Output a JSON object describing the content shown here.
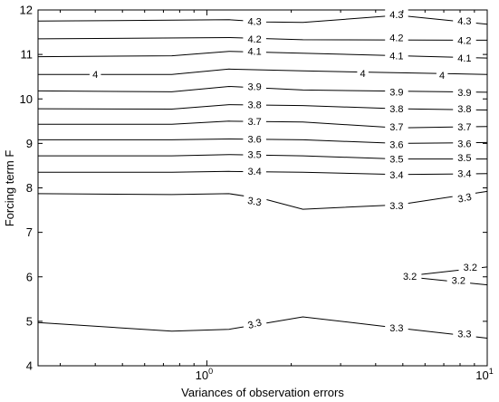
{
  "chart_data": {
    "type": "contour",
    "title": "",
    "xlabel": "Variances of observation errors",
    "ylabel": "Forcing term F",
    "x_scale": "log",
    "xlim": [
      0.25,
      10
    ],
    "ylim": [
      4,
      12
    ],
    "xticks": [
      {
        "value": 1,
        "base": "10",
        "exp": "0"
      },
      {
        "value": 10,
        "base": "10",
        "exp": "1"
      }
    ],
    "yticks": [
      4,
      5,
      6,
      7,
      8,
      9,
      10,
      11,
      12
    ],
    "grid": false,
    "legend": "none",
    "contours": [
      {
        "level": "4.3",
        "points": [
          [
            0.25,
            11.75
          ],
          [
            1.2,
            11.78
          ],
          [
            1.6,
            11.73
          ],
          [
            2.2,
            11.72
          ],
          [
            4.8,
            11.88
          ],
          [
            10,
            11.68
          ]
        ],
        "labels": [
          {
            "x": 1.48,
            "y": 11.75,
            "rot": 0
          },
          {
            "x": 4.75,
            "y": 11.9,
            "rot": 0
          },
          {
            "x": 8.3,
            "y": 11.76,
            "rot": 0
          }
        ]
      },
      {
        "level": "4.2",
        "points": [
          [
            0.25,
            11.35
          ],
          [
            1.2,
            11.38
          ],
          [
            2.2,
            11.33
          ],
          [
            10,
            11.32
          ]
        ],
        "labels": [
          {
            "x": 1.48,
            "y": 11.35,
            "rot": 0
          },
          {
            "x": 4.75,
            "y": 11.38,
            "rot": 0
          },
          {
            "x": 8.3,
            "y": 11.32,
            "rot": 0
          }
        ]
      },
      {
        "level": "4.1",
        "points": [
          [
            0.25,
            10.95
          ],
          [
            0.75,
            10.97
          ],
          [
            1.2,
            11.07
          ],
          [
            10,
            10.92
          ]
        ],
        "labels": [
          {
            "x": 1.48,
            "y": 11.07,
            "rot": 0
          },
          {
            "x": 4.75,
            "y": 10.97,
            "rot": 0
          },
          {
            "x": 8.3,
            "y": 10.92,
            "rot": 0
          }
        ]
      },
      {
        "level": "4",
        "points": [
          [
            0.25,
            10.55
          ],
          [
            0.75,
            10.55
          ],
          [
            1.2,
            10.67
          ],
          [
            2.2,
            10.63
          ],
          [
            10,
            10.55
          ]
        ],
        "labels": [
          {
            "x": 0.4,
            "y": 10.55,
            "rot": 0
          },
          {
            "x": 3.6,
            "y": 10.58,
            "rot": 0
          },
          {
            "x": 6.9,
            "y": 10.53,
            "rot": 0
          }
        ]
      },
      {
        "level": "3.9",
        "points": [
          [
            0.25,
            10.18
          ],
          [
            0.75,
            10.16
          ],
          [
            1.2,
            10.28
          ],
          [
            2.2,
            10.2
          ],
          [
            10,
            10.15
          ]
        ],
        "labels": [
          {
            "x": 1.48,
            "y": 10.28,
            "rot": 0
          },
          {
            "x": 4.75,
            "y": 10.16,
            "rot": 0
          },
          {
            "x": 8.3,
            "y": 10.15,
            "rot": 0
          }
        ]
      },
      {
        "level": "3.8",
        "points": [
          [
            0.25,
            9.78
          ],
          [
            0.75,
            9.77
          ],
          [
            1.2,
            9.87
          ],
          [
            2.2,
            9.85
          ],
          [
            4.8,
            9.78
          ],
          [
            10,
            9.75
          ]
        ],
        "labels": [
          {
            "x": 1.48,
            "y": 9.87,
            "rot": 0
          },
          {
            "x": 4.75,
            "y": 9.78,
            "rot": 0
          },
          {
            "x": 8.3,
            "y": 9.78,
            "rot": 0
          }
        ]
      },
      {
        "level": "3.7",
        "points": [
          [
            0.25,
            9.43
          ],
          [
            0.75,
            9.43
          ],
          [
            1.2,
            9.5
          ],
          [
            2.2,
            9.48
          ],
          [
            4.8,
            9.35
          ],
          [
            10,
            9.38
          ]
        ],
        "labels": [
          {
            "x": 1.48,
            "y": 9.5,
            "rot": 0
          },
          {
            "x": 4.75,
            "y": 9.37,
            "rot": 0
          },
          {
            "x": 8.3,
            "y": 9.37,
            "rot": 0
          }
        ]
      },
      {
        "level": "3.6",
        "points": [
          [
            0.25,
            9.08
          ],
          [
            0.75,
            9.08
          ],
          [
            1.2,
            9.1
          ],
          [
            2.2,
            9.08
          ],
          [
            4.8,
            9.0
          ],
          [
            10,
            9.02
          ]
        ],
        "labels": [
          {
            "x": 1.48,
            "y": 9.1,
            "rot": 0
          },
          {
            "x": 4.75,
            "y": 8.98,
            "rot": 0
          },
          {
            "x": 8.3,
            "y": 9.0,
            "rot": 0
          }
        ]
      },
      {
        "level": "3.5",
        "points": [
          [
            0.25,
            8.72
          ],
          [
            0.75,
            8.72
          ],
          [
            1.2,
            8.75
          ],
          [
            2.2,
            8.72
          ],
          [
            4.8,
            8.65
          ],
          [
            10,
            8.65
          ]
        ],
        "labels": [
          {
            "x": 1.48,
            "y": 8.75,
            "rot": 0
          },
          {
            "x": 4.75,
            "y": 8.65,
            "rot": 0
          },
          {
            "x": 8.3,
            "y": 8.68,
            "rot": 0
          }
        ]
      },
      {
        "level": "3.4",
        "points": [
          [
            0.25,
            8.35
          ],
          [
            0.75,
            8.35
          ],
          [
            1.2,
            8.37
          ],
          [
            2.2,
            8.35
          ],
          [
            4.8,
            8.3
          ],
          [
            10,
            8.32
          ]
        ],
        "labels": [
          {
            "x": 1.48,
            "y": 8.38,
            "rot": 0
          },
          {
            "x": 4.75,
            "y": 8.3,
            "rot": 0
          },
          {
            "x": 8.3,
            "y": 8.33,
            "rot": 0
          }
        ]
      },
      {
        "level": "3.3",
        "points": [
          [
            0.25,
            7.87
          ],
          [
            0.75,
            7.85
          ],
          [
            1.2,
            7.87
          ],
          [
            1.6,
            7.75
          ],
          [
            2.2,
            7.52
          ],
          [
            4.8,
            7.62
          ],
          [
            10,
            7.92
          ]
        ],
        "labels": [
          {
            "x": 1.48,
            "y": 7.7,
            "rot": 10
          },
          {
            "x": 4.75,
            "y": 7.6,
            "rot": 0
          },
          {
            "x": 8.3,
            "y": 7.78,
            "rot": -12
          }
        ]
      },
      {
        "level": "3.2",
        "points": [
          [
            5.2,
            6.02
          ],
          [
            10,
            6.22
          ]
        ],
        "labels": [
          {
            "x": 5.3,
            "y": 6.02,
            "rot": 0
          },
          {
            "x": 8.7,
            "y": 6.22,
            "rot": 0
          }
        ]
      },
      {
        "level": "3.2",
        "points": [
          [
            5.2,
            6.0
          ],
          [
            10,
            5.82
          ]
        ],
        "labels": [
          {
            "x": 7.9,
            "y": 5.92,
            "rot": 0
          }
        ]
      },
      {
        "level": "3.3",
        "points": [
          [
            0.25,
            4.97
          ],
          [
            0.75,
            4.78
          ],
          [
            1.2,
            4.82
          ],
          [
            1.6,
            4.95
          ],
          [
            2.2,
            5.1
          ],
          [
            4.8,
            4.85
          ],
          [
            10,
            4.62
          ]
        ],
        "labels": [
          {
            "x": 1.48,
            "y": 4.95,
            "rot": -15
          },
          {
            "x": 4.75,
            "y": 4.86,
            "rot": 0
          },
          {
            "x": 8.3,
            "y": 4.72,
            "rot": 0
          }
        ]
      }
    ]
  }
}
